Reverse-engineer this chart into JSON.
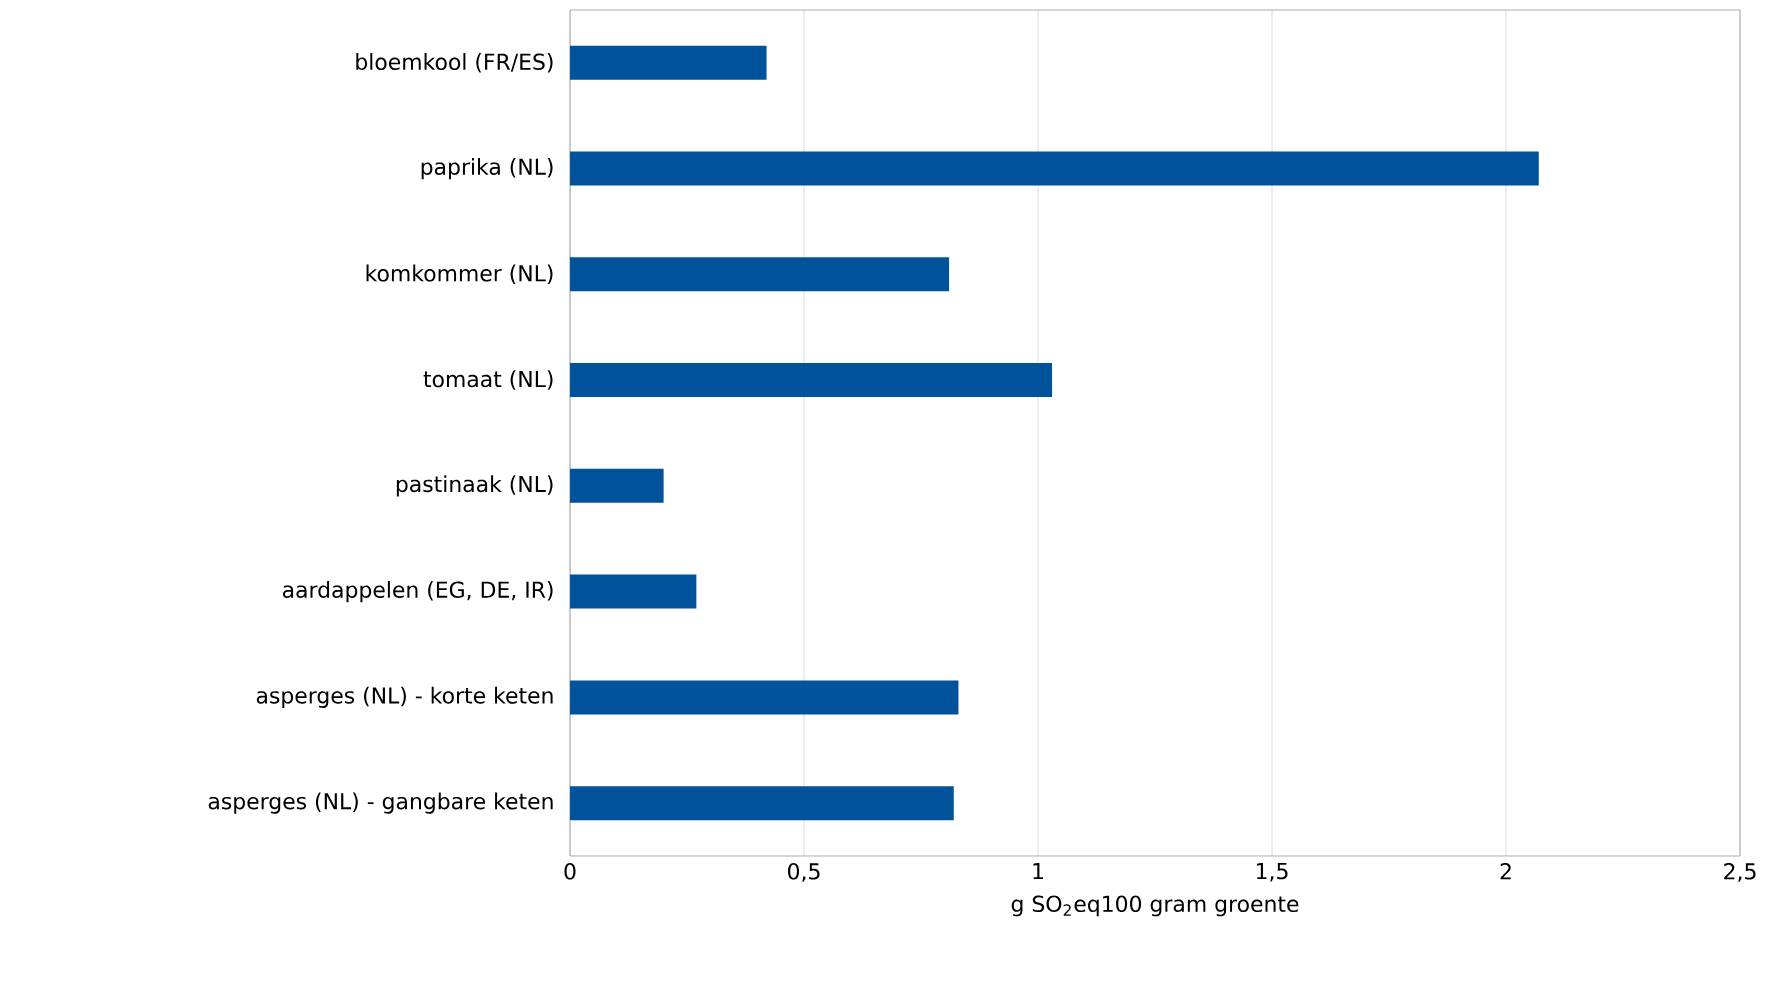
{
  "chart_data": {
    "type": "bar",
    "orientation": "horizontal",
    "categories": [
      "bloemkool (FR/ES)",
      "paprika (NL)",
      "komkommer (NL)",
      "tomaat (NL)",
      "pastinaak (NL)",
      "aardappelen (EG, DE, IR)",
      "asperges (NL) - korte keten",
      "asperges (NL) - gangbare keten"
    ],
    "values": [
      0.42,
      2.07,
      0.81,
      1.03,
      0.2,
      0.27,
      0.83,
      0.82
    ],
    "color": "#00539b",
    "xlabel": "g SO$_{2}$eq100 gram groente",
    "xlim": [
      0,
      2.5
    ],
    "xticks": [
      0,
      {
        "value": 0.5,
        "label": "0,5"
      },
      1,
      {
        "value": 1.5,
        "label": "1,5"
      },
      2,
      {
        "value": 2.5,
        "label": "2,5"
      }
    ],
    "grid": "x"
  }
}
